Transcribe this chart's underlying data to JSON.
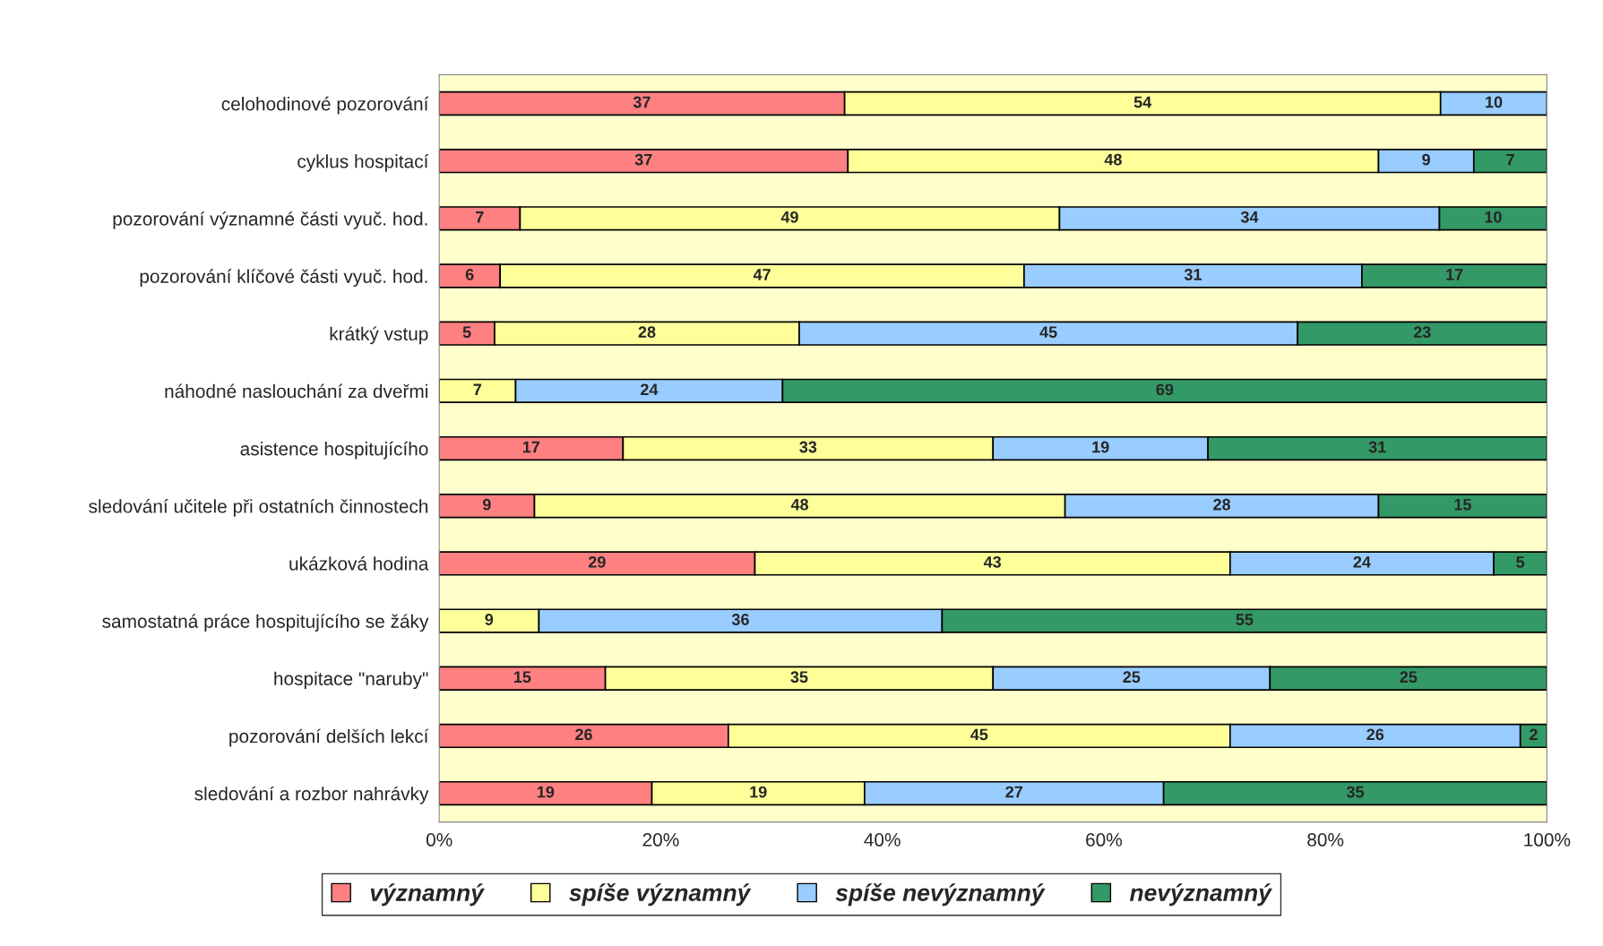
{
  "chart_data": {
    "type": "bar",
    "orientation": "horizontal",
    "stacked": true,
    "categories": [
      "celohodinové pozorování",
      "cyklus hospitací",
      "pozorování významné části vyuč. hod.",
      "pozorování klíčové části vyuč. hod.",
      "krátký vstup",
      "náhodné naslouchání za dveřmi",
      "asistence hospitujícího",
      "sledování učitele při ostatních činnostech",
      "ukázková hodina",
      "samostatná práce hospitujícího se žáky",
      "hospitace \"naruby\"",
      "pozorování delších lekcí",
      "sledování a rozbor nahrávky"
    ],
    "series": [
      {
        "name": "významný",
        "color": "#ff8080",
        "values": [
          36.6,
          36.9,
          7.3,
          5.5,
          5.0,
          null,
          16.6,
          8.6,
          28.5,
          null,
          15.0,
          26.1,
          19.2
        ],
        "value_labels": [
          "37",
          "37",
          "7",
          "6",
          "5",
          null,
          "17",
          "9",
          "29",
          null,
          "15",
          "26",
          "19"
        ]
      },
      {
        "name": "spíše významný",
        "color": "#ffff99",
        "values": [
          53.8,
          47.9,
          48.7,
          47.3,
          27.5,
          6.9,
          33.4,
          47.9,
          42.9,
          9.0,
          35.0,
          45.3,
          19.2
        ],
        "value_labels": [
          "54",
          "48",
          "49",
          "47",
          "28",
          "7",
          "33",
          "48",
          "43",
          "9",
          "35",
          "45",
          "19"
        ]
      },
      {
        "name": "spíše nevýznamný",
        "color": "#99ccff",
        "values": [
          9.6,
          8.6,
          34.3,
          30.5,
          45.0,
          24.1,
          19.4,
          28.3,
          23.8,
          36.4,
          25.0,
          26.2,
          27.0
        ],
        "value_labels": [
          "10",
          "9",
          "34",
          "31",
          "45",
          "24",
          "19",
          "28",
          "24",
          "36",
          "25",
          "26",
          "27"
        ]
      },
      {
        "name": "nevýznamný",
        "color": "#339966",
        "values": [
          null,
          6.6,
          9.7,
          16.7,
          22.5,
          69.0,
          30.6,
          15.2,
          4.8,
          54.6,
          25.0,
          2.4,
          34.6
        ],
        "value_labels": [
          null,
          "7",
          "10",
          "17",
          "23",
          "69",
          "31",
          "15",
          "5",
          "55",
          "25",
          "2",
          "35"
        ]
      }
    ],
    "xlim": [
      0,
      100
    ],
    "xticks": [
      {
        "value": 0,
        "label": "0%"
      },
      {
        "value": 20,
        "label": "20%"
      },
      {
        "value": 40,
        "label": "40%"
      },
      {
        "value": 60,
        "label": "60%"
      },
      {
        "value": 80,
        "label": "80%"
      },
      {
        "value": 100,
        "label": "100%"
      }
    ],
    "grid": false,
    "legend": "bottom"
  }
}
